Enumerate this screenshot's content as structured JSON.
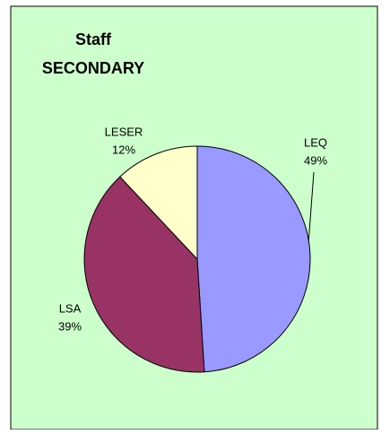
{
  "chart_data": {
    "type": "pie",
    "title": [
      "Staff",
      "SECONDARY"
    ],
    "categories": [
      "LEQ",
      "LSA",
      "LESER"
    ],
    "values": [
      49,
      39,
      12
    ],
    "value_labels": [
      "49%",
      "39%",
      "12%"
    ],
    "colors": [
      "#9999ff",
      "#993366",
      "#ffffcc"
    ]
  }
}
